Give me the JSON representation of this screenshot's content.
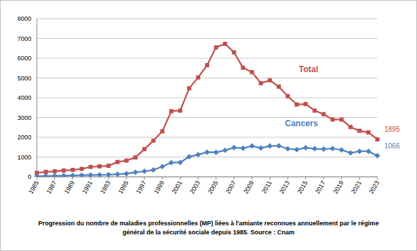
{
  "chart_data": {
    "type": "line",
    "title": "Progression du nombre de maladies professionnelles (MP) liées à l'amiante  reconnues annuellement par le régime général de la sécurité sociale  depuis 1985. Source : Cnam",
    "x": [
      1985,
      1986,
      1987,
      1988,
      1989,
      1990,
      1991,
      1992,
      1993,
      1994,
      1995,
      1996,
      1997,
      1998,
      1999,
      2000,
      2001,
      2002,
      2003,
      2004,
      2005,
      2006,
      2007,
      2008,
      2009,
      2010,
      2011,
      2012,
      2013,
      2014,
      2015,
      2016,
      2017,
      2018,
      2019,
      2020,
      2021,
      2022,
      2023
    ],
    "series": [
      {
        "name": "Total",
        "color": "#c0504d",
        "marker": "square",
        "values": [
          200,
          250,
          280,
          320,
          350,
          400,
          500,
          530,
          560,
          750,
          820,
          980,
          1400,
          1830,
          2300,
          3320,
          3350,
          4480,
          5030,
          5650,
          6550,
          6730,
          6300,
          5520,
          5300,
          4740,
          4880,
          4560,
          4080,
          3660,
          3680,
          3350,
          3170,
          2900,
          2900,
          2520,
          2330,
          2250,
          1895
        ],
        "value_labels": [
          null,
          null,
          null,
          null,
          null,
          null,
          null,
          null,
          null,
          null,
          null,
          null,
          null,
          null,
          null,
          null,
          null,
          null,
          null,
          null,
          null,
          null,
          null,
          null,
          null,
          null,
          null,
          null,
          null,
          null,
          null,
          null,
          null,
          null,
          null,
          null,
          null,
          null,
          "1895"
        ]
      },
      {
        "name": "Cancers",
        "color": "#4f81bd",
        "marker": "diamond",
        "values": [
          30,
          40,
          50,
          60,
          70,
          80,
          90,
          100,
          110,
          130,
          160,
          230,
          280,
          350,
          520,
          720,
          730,
          1020,
          1120,
          1250,
          1240,
          1340,
          1480,
          1450,
          1560,
          1460,
          1560,
          1570,
          1420,
          1380,
          1470,
          1420,
          1400,
          1430,
          1360,
          1210,
          1290,
          1290,
          1066
        ],
        "value_labels": [
          null,
          null,
          null,
          null,
          null,
          null,
          null,
          null,
          null,
          null,
          null,
          null,
          null,
          null,
          null,
          null,
          null,
          null,
          null,
          null,
          null,
          null,
          null,
          null,
          null,
          null,
          null,
          null,
          null,
          null,
          null,
          null,
          null,
          null,
          null,
          null,
          null,
          null,
          "1066"
        ]
      }
    ],
    "xlim": [
      1985,
      2023
    ],
    "xticks": [
      1985,
      1987,
      1989,
      1991,
      1993,
      1995,
      1997,
      1999,
      2001,
      2003,
      2005,
      2007,
      2009,
      2011,
      2013,
      2015,
      2017,
      2019,
      2021,
      2023
    ],
    "ylim": [
      0,
      8000
    ],
    "yticks": [
      0,
      1000,
      2000,
      3000,
      4000,
      5000,
      6000,
      7000,
      8000
    ],
    "grid": true
  }
}
